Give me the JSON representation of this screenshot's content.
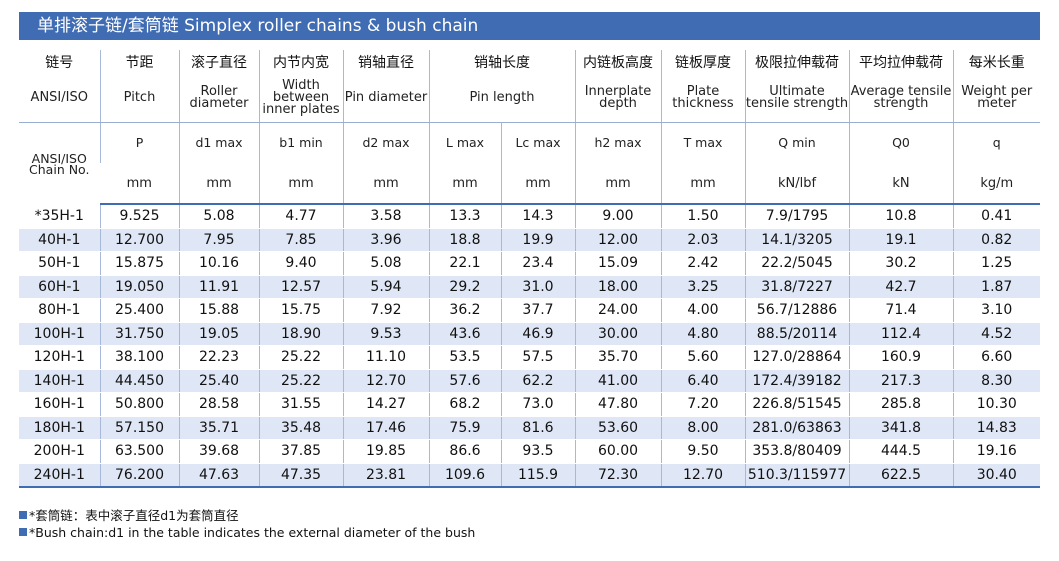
{
  "title": "单排滚子链/套筒链  Simplex roller chains & bush chain",
  "headers_zh": [
    "链号",
    "节距",
    "滚子直径",
    "内节内宽",
    "销轴直径",
    "销轴长度",
    "内链板高度",
    "链板厚度",
    "极限拉伸载荷",
    "平均拉伸载荷",
    "每米长重"
  ],
  "headers_en": [
    "ANSI/ISO",
    "Pitch",
    "Roller diameter",
    "Width between inner plates",
    "Pin diameter",
    "Pin length",
    "Innerplate depth",
    "Plate thickness",
    "Ultimate tensile strength",
    "Average tensile strength",
    "Weight per meter"
  ],
  "symbols": [
    "ANSI/ISO Chain No.",
    "P",
    "d1 max",
    "b1 min",
    "d2 max",
    "L max",
    "Lc max",
    "h2 max",
    "T max",
    "Q min",
    "Q0",
    "q"
  ],
  "units": [
    "mm",
    "mm",
    "mm",
    "mm",
    "mm",
    "mm",
    "mm",
    "mm",
    "kN/lbf",
    "kN",
    "kg/m"
  ],
  "rows": [
    [
      "*35H-1",
      "9.525",
      "5.08",
      "4.77",
      "3.58",
      "13.3",
      "14.3",
      "9.00",
      "1.50",
      "7.9/1795",
      "10.8",
      "0.41"
    ],
    [
      "40H-1",
      "12.700",
      "7.95",
      "7.85",
      "3.96",
      "18.8",
      "19.9",
      "12.00",
      "2.03",
      "14.1/3205",
      "19.1",
      "0.82"
    ],
    [
      "50H-1",
      "15.875",
      "10.16",
      "9.40",
      "5.08",
      "22.1",
      "23.4",
      "15.09",
      "2.42",
      "22.2/5045",
      "30.2",
      "1.25"
    ],
    [
      "60H-1",
      "19.050",
      "11.91",
      "12.57",
      "5.94",
      "29.2",
      "31.0",
      "18.00",
      "3.25",
      "31.8/7227",
      "42.7",
      "1.87"
    ],
    [
      "80H-1",
      "25.400",
      "15.88",
      "15.75",
      "7.92",
      "36.2",
      "37.7",
      "24.00",
      "4.00",
      "56.7/12886",
      "71.4",
      "3.10"
    ],
    [
      "100H-1",
      "31.750",
      "19.05",
      "18.90",
      "9.53",
      "43.6",
      "46.9",
      "30.00",
      "4.80",
      "88.5/20114",
      "112.4",
      "4.52"
    ],
    [
      "120H-1",
      "38.100",
      "22.23",
      "25.22",
      "11.10",
      "53.5",
      "57.5",
      "35.70",
      "5.60",
      "127.0/28864",
      "160.9",
      "6.60"
    ],
    [
      "140H-1",
      "44.450",
      "25.40",
      "25.22",
      "12.70",
      "57.6",
      "62.2",
      "41.00",
      "6.40",
      "172.4/39182",
      "217.3",
      "8.30"
    ],
    [
      "160H-1",
      "50.800",
      "28.58",
      "31.55",
      "14.27",
      "68.2",
      "73.0",
      "47.80",
      "7.20",
      "226.8/51545",
      "285.8",
      "10.30"
    ],
    [
      "180H-1",
      "57.150",
      "35.71",
      "35.48",
      "17.46",
      "75.9",
      "81.6",
      "53.60",
      "8.00",
      "281.0/63863",
      "341.8",
      "14.83"
    ],
    [
      "200H-1",
      "63.500",
      "39.68",
      "37.85",
      "19.85",
      "86.6",
      "93.5",
      "60.00",
      "9.50",
      "353.8/80409",
      "444.5",
      "19.16"
    ],
    [
      "240H-1",
      "76.200",
      "47.63",
      "47.35",
      "23.81",
      "109.6",
      "115.9",
      "72.30",
      "12.70",
      "510.3/115977",
      "622.5",
      "30.40"
    ]
  ],
  "notes": [
    "*套筒链：表中滚子直径d1为套筒直径",
    "*Bush chain:d1 in the table indicates the external diameter of the bush"
  ],
  "colors": {
    "accent": "#3f6cb3",
    "stripe": "#dfe6f5"
  }
}
